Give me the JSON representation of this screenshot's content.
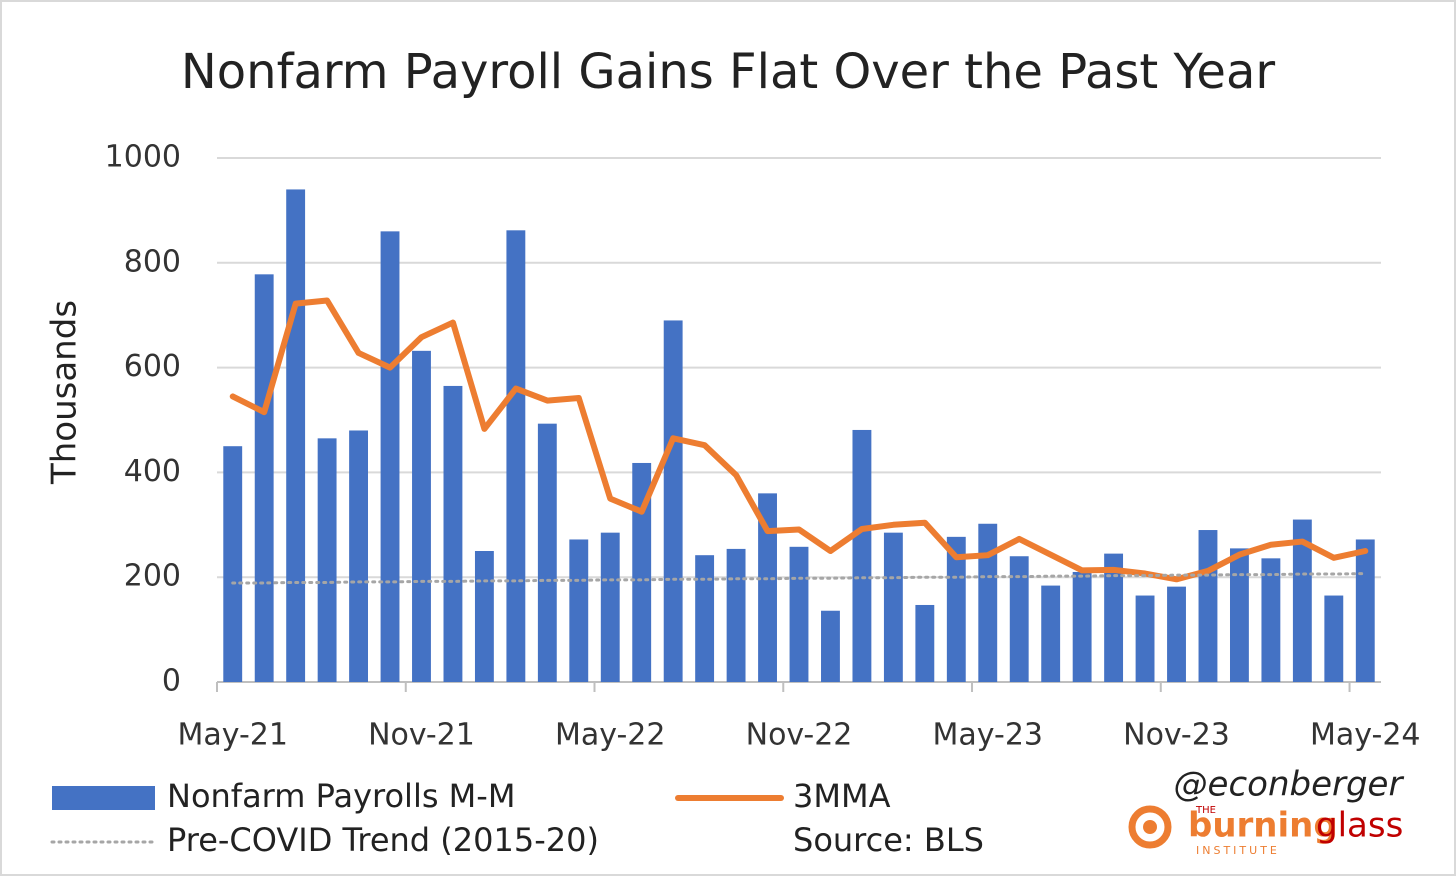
{
  "chart_data": {
    "type": "bar",
    "title": "Nonfarm Payroll Gains Flat Over the Past Year",
    "y_label": "Thousands",
    "categories": [
      "May-21",
      null,
      null,
      null,
      null,
      null,
      "Nov-21",
      null,
      null,
      null,
      null,
      null,
      "May-22",
      null,
      null,
      null,
      null,
      null,
      "Nov-22",
      null,
      null,
      null,
      null,
      null,
      "May-23",
      null,
      null,
      null,
      null,
      null,
      "Nov-23",
      null,
      null,
      null,
      null,
      null,
      "May-24"
    ],
    "series": [
      {
        "name": "Nonfarm Payrolls M-M",
        "type": "bar",
        "color": "#4472c4",
        "values": [
          450,
          778,
          940,
          465,
          480,
          860,
          632,
          565,
          250,
          862,
          493,
          272,
          285,
          418,
          690,
          242,
          254,
          360,
          258,
          136,
          481,
          285,
          147,
          277,
          302,
          240,
          184,
          210,
          245,
          165,
          182,
          290,
          255,
          236,
          310,
          165,
          272
        ]
      },
      {
        "name": "3MMA",
        "type": "line",
        "color": "#ed7d31",
        "line_style": "solid",
        "values": [
          545,
          515,
          722,
          728,
          628,
          600,
          658,
          686,
          483,
          560,
          537,
          542,
          350,
          325,
          465,
          452,
          395,
          288,
          291,
          250,
          292,
          300,
          304,
          238,
          242,
          273,
          243,
          213,
          214,
          207,
          196,
          212,
          243,
          262,
          268,
          237,
          250
        ]
      },
      {
        "name": "Pre-COVID Trend (2015-20)",
        "type": "line",
        "color": "#a6a6a6",
        "line_style": "dotted",
        "values": [
          189,
          189,
          190,
          190,
          191,
          191,
          192,
          192,
          193,
          193,
          194,
          194,
          195,
          195,
          196,
          196,
          197,
          197,
          198,
          198,
          199,
          199,
          200,
          200,
          201,
          201,
          202,
          202,
          203,
          203,
          204,
          204,
          205,
          205,
          206,
          206,
          207
        ]
      }
    ],
    "ylim": [
      0,
      1000
    ],
    "yticks": [
      0,
      200,
      400,
      600,
      800,
      1000
    ],
    "grid": true,
    "source": "Source: BLS",
    "handle": "@econberger",
    "logo": {
      "top": "THE",
      "word1": "burning",
      "word2": "glass",
      "bottom": "INSTITUTE"
    }
  }
}
